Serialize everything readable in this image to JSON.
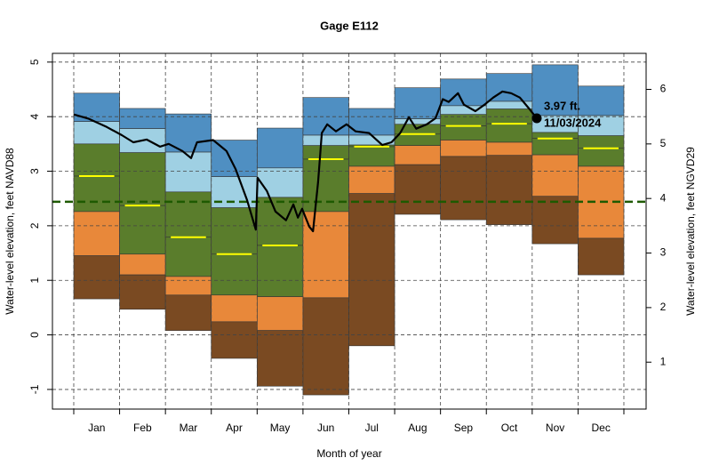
{
  "chart_data": {
    "type": "band",
    "title": "Gage E112",
    "x_label": "Month of year",
    "y_label": "Water-level elevation, feet NAVD88",
    "y2_label": "Water-level elevation, feet NGVD29",
    "categories": [
      "Jan",
      "Feb",
      "Mar",
      "Apr",
      "May",
      "Jun",
      "Jul",
      "Aug",
      "Sep",
      "Oct",
      "Nov",
      "Dec"
    ],
    "edges": [
      [
        4.43,
        4.15,
        4.05,
        3.57,
        3.79,
        4.35,
        4.15,
        4.53,
        4.69,
        4.79,
        4.95,
        4.56
      ],
      [
        3.91,
        3.78,
        3.35,
        2.9,
        3.06,
        3.66,
        3.66,
        3.96,
        4.2,
        4.28,
        4.02,
        4.02
      ],
      [
        3.5,
        3.34,
        2.62,
        2.33,
        2.52,
        3.47,
        3.48,
        3.86,
        4.04,
        4.14,
        3.71,
        3.65
      ],
      [
        2.91,
        2.37,
        1.79,
        1.48,
        1.64,
        3.22,
        3.45,
        3.68,
        3.83,
        3.87,
        3.6,
        3.42
      ],
      [
        2.26,
        1.48,
        1.07,
        0.73,
        0.7,
        2.26,
        3.09,
        3.47,
        3.57,
        3.53,
        3.3,
        3.09
      ],
      [
        1.45,
        1.1,
        0.73,
        0.24,
        0.08,
        0.68,
        2.59,
        3.12,
        3.27,
        3.29,
        2.54,
        1.77
      ],
      [
        0.66,
        0.47,
        0.08,
        -0.43,
        -0.94,
        -1.1,
        -0.2,
        2.21,
        2.11,
        2.02,
        1.67,
        1.1
      ]
    ],
    "band_colors": [
      "#4f8fc2",
      "#9fd0e3",
      "#5a7d2c",
      "#5a7d2c",
      "#e8883a",
      "#7a4a22"
    ],
    "median_color": "#ffff00",
    "line": {
      "color": "#000000",
      "x": [
        0,
        0.33,
        0.72,
        1.05,
        1.3,
        1.59,
        1.88,
        2.07,
        2.37,
        2.56,
        2.69,
        3.04,
        3.33,
        3.53,
        3.78,
        3.97,
        4.01,
        4.21,
        4.4,
        4.63,
        4.79,
        4.89,
        4.98,
        5.14,
        5.22,
        5.33,
        5.41,
        5.53,
        5.72,
        5.95,
        6.15,
        6.44,
        6.73,
        6.93,
        7.12,
        7.31,
        7.47,
        7.7,
        7.89,
        8.05,
        8.18,
        8.38,
        8.51,
        8.76,
        8.96,
        9.15,
        9.35,
        9.54,
        9.73,
        9.93,
        10.1
      ],
      "values": [
        4.04,
        3.96,
        3.81,
        3.66,
        3.53,
        3.58,
        3.45,
        3.5,
        3.37,
        3.24,
        3.53,
        3.57,
        3.37,
        3.04,
        2.47,
        1.93,
        2.88,
        2.64,
        2.26,
        2.1,
        2.39,
        2.15,
        2.31,
        1.98,
        1.9,
        2.8,
        3.7,
        3.86,
        3.73,
        3.86,
        3.73,
        3.7,
        3.48,
        3.53,
        3.7,
        3.99,
        3.78,
        3.86,
        3.97,
        4.32,
        4.27,
        4.43,
        4.22,
        4.1,
        4.22,
        4.35,
        4.46,
        4.43,
        4.35,
        4.15,
        3.97
      ]
    },
    "annotation": {
      "x": 10.1,
      "value": 3.97,
      "value_label": "3.97 ft.",
      "date": "11/03/2024"
    },
    "reference": {
      "value": 2.44,
      "color": "#1e5a00"
    },
    "xlim": [
      -0.465,
      12.485
    ],
    "ylim": [
      -1.36,
      5.16
    ],
    "yticks": [
      -1,
      0,
      1,
      2,
      3,
      4,
      5
    ],
    "y2lim": [
      0.14,
      6.66
    ],
    "y2ticks": [
      1,
      2,
      3,
      4,
      5,
      6
    ],
    "grid": true
  }
}
